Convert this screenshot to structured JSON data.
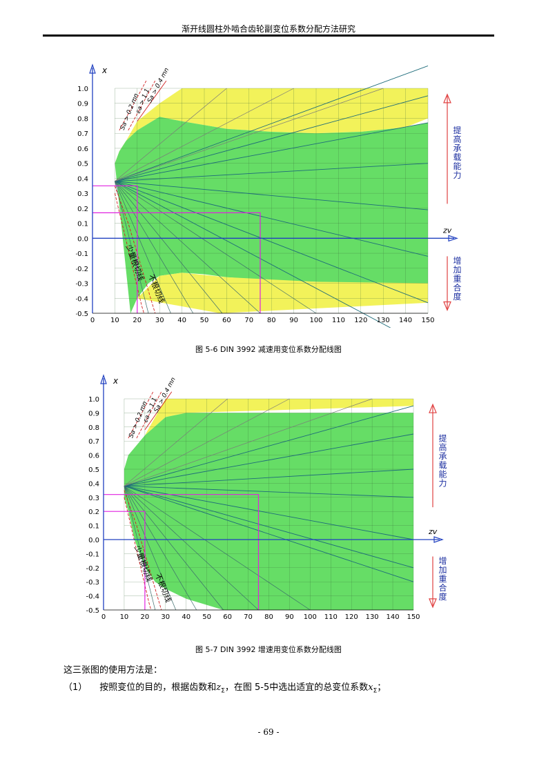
{
  "header": "渐开线圆柱外啮合齿轮副变位系数分配方法研究",
  "figure1": {
    "caption": "图 5-6 DIN 3992 减速用变位系数分配线图",
    "chart_data": {
      "type": "area",
      "xlabel": "zv",
      "ylabel": "x",
      "xlim": [
        0,
        150
      ],
      "ylim": [
        -0.5,
        1.0
      ],
      "x_ticks": [
        "0",
        "10",
        "20",
        "30",
        "40",
        "50",
        "60",
        "70",
        "80",
        "90",
        "100",
        "110",
        "120",
        "130",
        "140",
        "150"
      ],
      "y_ticks": [
        "1.0",
        "0.9",
        "0.8",
        "0.7",
        "0.6",
        "0.5",
        "0.4",
        "0.3",
        "0.2",
        "0.1",
        "0.0",
        "-0.1",
        "-0.2",
        "-0.3",
        "-0.4",
        "-0.5"
      ],
      "right_label_top": "提高承载能力",
      "right_label_bottom": "增加重合度",
      "curve_labels": [
        "Sa > 0.2 mn",
        "εa > 1.1",
        "Sa > 0.4 mn",
        "少量根切线",
        "不根切线"
      ],
      "yellow_top": [
        [
          20,
          0.78
        ],
        [
          30,
          0.9
        ],
        [
          40,
          1.0
        ],
        [
          150,
          1.0
        ],
        [
          150,
          0.8
        ]
      ],
      "green_upper": [
        [
          10,
          0.5
        ],
        [
          12,
          0.58
        ],
        [
          15,
          0.65
        ],
        [
          20,
          0.72
        ],
        [
          30,
          0.81
        ],
        [
          40,
          0.78
        ],
        [
          60,
          0.73
        ],
        [
          80,
          0.71
        ],
        [
          100,
          0.7
        ],
        [
          120,
          0.71
        ],
        [
          140,
          0.74
        ],
        [
          150,
          0.77
        ]
      ],
      "green_lower": [
        [
          150,
          -0.3
        ],
        [
          120,
          -0.3
        ],
        [
          100,
          -0.29
        ],
        [
          80,
          -0.28
        ],
        [
          60,
          -0.26
        ],
        [
          50,
          -0.24
        ],
        [
          40,
          -0.23
        ],
        [
          30,
          -0.25
        ],
        [
          25,
          -0.3
        ],
        [
          20,
          -0.4
        ],
        [
          17,
          -0.5
        ]
      ],
      "yellow_bottom": [
        [
          20,
          -0.4
        ],
        [
          30,
          -0.25
        ],
        [
          40,
          -0.23
        ],
        [
          60,
          -0.26
        ],
        [
          100,
          -0.29
        ],
        [
          150,
          -0.3
        ],
        [
          150,
          -0.43
        ],
        [
          57,
          -0.5
        ]
      ],
      "lines_end_values": [
        1.15,
        0.95,
        0.77,
        0.5,
        0.19,
        -0.12,
        -0.43,
        -0.73
      ],
      "pivot": [
        10,
        0.38
      ],
      "magenta_examples": [
        {
          "y": 0.35,
          "x": 20
        },
        {
          "y": 0.17,
          "x": 75
        }
      ]
    }
  },
  "figure2": {
    "caption": "图 5-7 DIN 3992 增速用变位系数分配线图",
    "chart_data": {
      "type": "area",
      "xlabel": "zv",
      "ylabel": "x",
      "xlim": [
        0,
        150
      ],
      "ylim": [
        -0.5,
        1.0
      ],
      "x_ticks": [
        "0",
        "10",
        "20",
        "30",
        "40",
        "50",
        "60",
        "70",
        "80",
        "90",
        "100",
        "110",
        "120",
        "130",
        "140",
        "150"
      ],
      "y_ticks": [
        "1.0",
        "0.9",
        "0.8",
        "0.7",
        "0.6",
        "0.5",
        "0.4",
        "0.3",
        "0.2",
        "0.1",
        "0.0",
        "-0.1",
        "-0.2",
        "-0.3",
        "-0.4",
        "-0.5"
      ],
      "right_label_top": "提高承载能力",
      "right_label_bottom": "增加重合度",
      "curve_labels": [
        "Sa > 0.2 mn",
        "εa > 1.1",
        "Sa > 0.4 mn",
        "少量根切线",
        "不根切线"
      ],
      "green_region": [
        [
          10,
          0.5
        ],
        [
          12,
          0.6
        ],
        [
          20,
          0.74
        ],
        [
          30,
          0.87
        ],
        [
          40,
          0.9
        ],
        [
          150,
          0.9
        ],
        [
          150,
          -0.5
        ],
        [
          58,
          -0.5
        ],
        [
          40,
          -0.42
        ],
        [
          30,
          -0.35
        ],
        [
          25,
          -0.3
        ],
        [
          20,
          -0.2
        ],
        [
          15,
          0.0
        ],
        [
          12,
          0.2
        ],
        [
          10,
          0.3
        ]
      ],
      "yellow_top": [
        [
          20,
          0.74
        ],
        [
          30,
          0.87
        ],
        [
          40,
          0.9
        ],
        [
          150,
          0.95
        ],
        [
          150,
          1.0
        ],
        [
          30,
          1.0
        ]
      ],
      "lines_end_values": [
        0.95,
        0.75,
        0.5,
        0.3,
        0.0,
        -0.2,
        -0.3
      ],
      "pivot": [
        10,
        0.38
      ],
      "magenta_examples": [
        {
          "y": 0.32,
          "x": 75
        },
        {
          "y": 0.2,
          "x": 20
        }
      ]
    }
  },
  "para1": "这三张图的使用方法是：",
  "para2_num": "（1）",
  "para2_text": "按照变位的目的，根据齿数和",
  "para2_sym1": "z",
  "para2_sub1": "Σ",
  "para2_text2": "，在图 5-5中选出适宜的总变位系数",
  "para2_sym2": "x",
  "para2_sub2": "Σ",
  "para2_end": "；",
  "page_number": "- 69 -"
}
